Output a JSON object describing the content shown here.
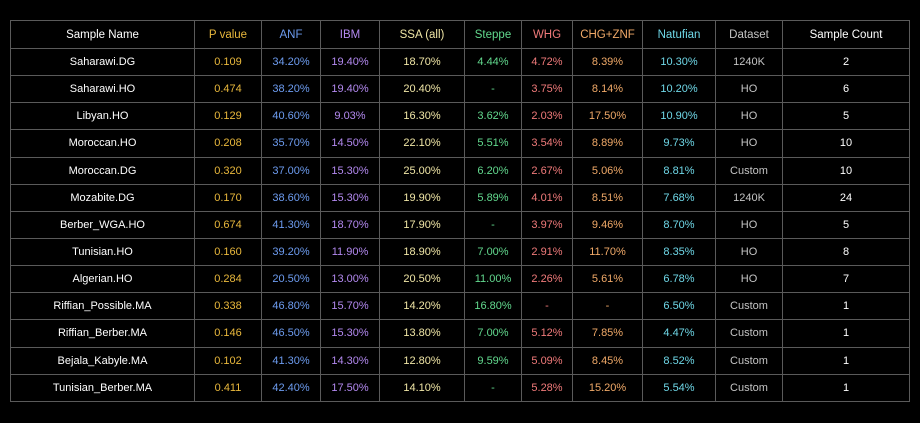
{
  "columns": [
    {
      "key": "name",
      "label": "Sample Name",
      "color": "#ffffff"
    },
    {
      "key": "p",
      "label": "P value",
      "color": "#e9b83c"
    },
    {
      "key": "anf",
      "label": "ANF",
      "color": "#6d9cf0"
    },
    {
      "key": "ibm",
      "label": "IBM",
      "color": "#b389f0"
    },
    {
      "key": "ssa",
      "label": "SSA (all)",
      "color": "#f0e6a6"
    },
    {
      "key": "steppe",
      "label": "Steppe",
      "color": "#62d98e"
    },
    {
      "key": "whg",
      "label": "WHG",
      "color": "#f07a7a"
    },
    {
      "key": "chg",
      "label": "CHG+ZNF",
      "color": "#f0a968"
    },
    {
      "key": "nat",
      "label": "Natufian",
      "color": "#6fd8e8"
    },
    {
      "key": "ds",
      "label": "Dataset",
      "color": "#c4c4c4"
    },
    {
      "key": "cnt",
      "label": "Sample Count",
      "color": "#ffffff"
    }
  ],
  "rows": [
    {
      "name": "Saharawi.DG",
      "p": "0.109",
      "anf": "34.20%",
      "ibm": "19.40%",
      "ssa": "18.70%",
      "steppe": "4.44%",
      "whg": "4.72%",
      "chg": "8.39%",
      "nat": "10.30%",
      "ds": "1240K",
      "cnt": "2"
    },
    {
      "name": "Saharawi.HO",
      "p": "0.474",
      "anf": "38.20%",
      "ibm": "19.40%",
      "ssa": "20.40%",
      "steppe": "-",
      "whg": "3.75%",
      "chg": "8.14%",
      "nat": "10.20%",
      "ds": "HO",
      "cnt": "6"
    },
    {
      "name": "Libyan.HO",
      "p": "0.129",
      "anf": "40.60%",
      "ibm": "9.03%",
      "ssa": "16.30%",
      "steppe": "3.62%",
      "whg": "2.03%",
      "chg": "17.50%",
      "nat": "10.90%",
      "ds": "HO",
      "cnt": "5"
    },
    {
      "name": "Moroccan.HO",
      "p": "0.208",
      "anf": "35.70%",
      "ibm": "14.50%",
      "ssa": "22.10%",
      "steppe": "5.51%",
      "whg": "3.54%",
      "chg": "8.89%",
      "nat": "9.73%",
      "ds": "HO",
      "cnt": "10"
    },
    {
      "name": "Moroccan.DG",
      "p": "0.320",
      "anf": "37.00%",
      "ibm": "15.30%",
      "ssa": "25.00%",
      "steppe": "6.20%",
      "whg": "2.67%",
      "chg": "5.06%",
      "nat": "8.81%",
      "ds": "Custom",
      "cnt": "10"
    },
    {
      "name": "Mozabite.DG",
      "p": "0.170",
      "anf": "38.60%",
      "ibm": "15.30%",
      "ssa": "19.90%",
      "steppe": "5.89%",
      "whg": "4.01%",
      "chg": "8.51%",
      "nat": "7.68%",
      "ds": "1240K",
      "cnt": "24"
    },
    {
      "name": "Berber_WGA.HO",
      "p": "0.674",
      "anf": "41.30%",
      "ibm": "18.70%",
      "ssa": "17.90%",
      "steppe": "-",
      "whg": "3.97%",
      "chg": "9.46%",
      "nat": "8.70%",
      "ds": "HO",
      "cnt": "5"
    },
    {
      "name": "Tunisian.HO",
      "p": "0.160",
      "anf": "39.20%",
      "ibm": "11.90%",
      "ssa": "18.90%",
      "steppe": "7.00%",
      "whg": "2.91%",
      "chg": "11.70%",
      "nat": "8.35%",
      "ds": "HO",
      "cnt": "8"
    },
    {
      "name": "Algerian.HO",
      "p": "0.284",
      "anf": "20.50%",
      "ibm": "13.00%",
      "ssa": "20.50%",
      "steppe": "11.00%",
      "whg": "2.26%",
      "chg": "5.61%",
      "nat": "6.78%",
      "ds": "HO",
      "cnt": "7"
    },
    {
      "name": "Riffian_Possible.MA",
      "p": "0.338",
      "anf": "46.80%",
      "ibm": "15.70%",
      "ssa": "14.20%",
      "steppe": "16.80%",
      "whg": "-",
      "chg": "-",
      "nat": "6.50%",
      "ds": "Custom",
      "cnt": "1"
    },
    {
      "name": "Riffian_Berber.MA",
      "p": "0.146",
      "anf": "46.50%",
      "ibm": "15.30%",
      "ssa": "13.80%",
      "steppe": "7.00%",
      "whg": "5.12%",
      "chg": "7.85%",
      "nat": "4.47%",
      "ds": "Custom",
      "cnt": "1"
    },
    {
      "name": "Bejala_Kabyle.MA",
      "p": "0.102",
      "anf": "41.30%",
      "ibm": "14.30%",
      "ssa": "12.80%",
      "steppe": "9.59%",
      "whg": "5.09%",
      "chg": "8.45%",
      "nat": "8.52%",
      "ds": "Custom",
      "cnt": "1"
    },
    {
      "name": "Tunisian_Berber.MA",
      "p": "0.411",
      "anf": "42.40%",
      "ibm": "17.50%",
      "ssa": "14.10%",
      "steppe": "-",
      "whg": "5.28%",
      "chg": "15.20%",
      "nat": "5.54%",
      "ds": "Custom",
      "cnt": "1"
    }
  ]
}
